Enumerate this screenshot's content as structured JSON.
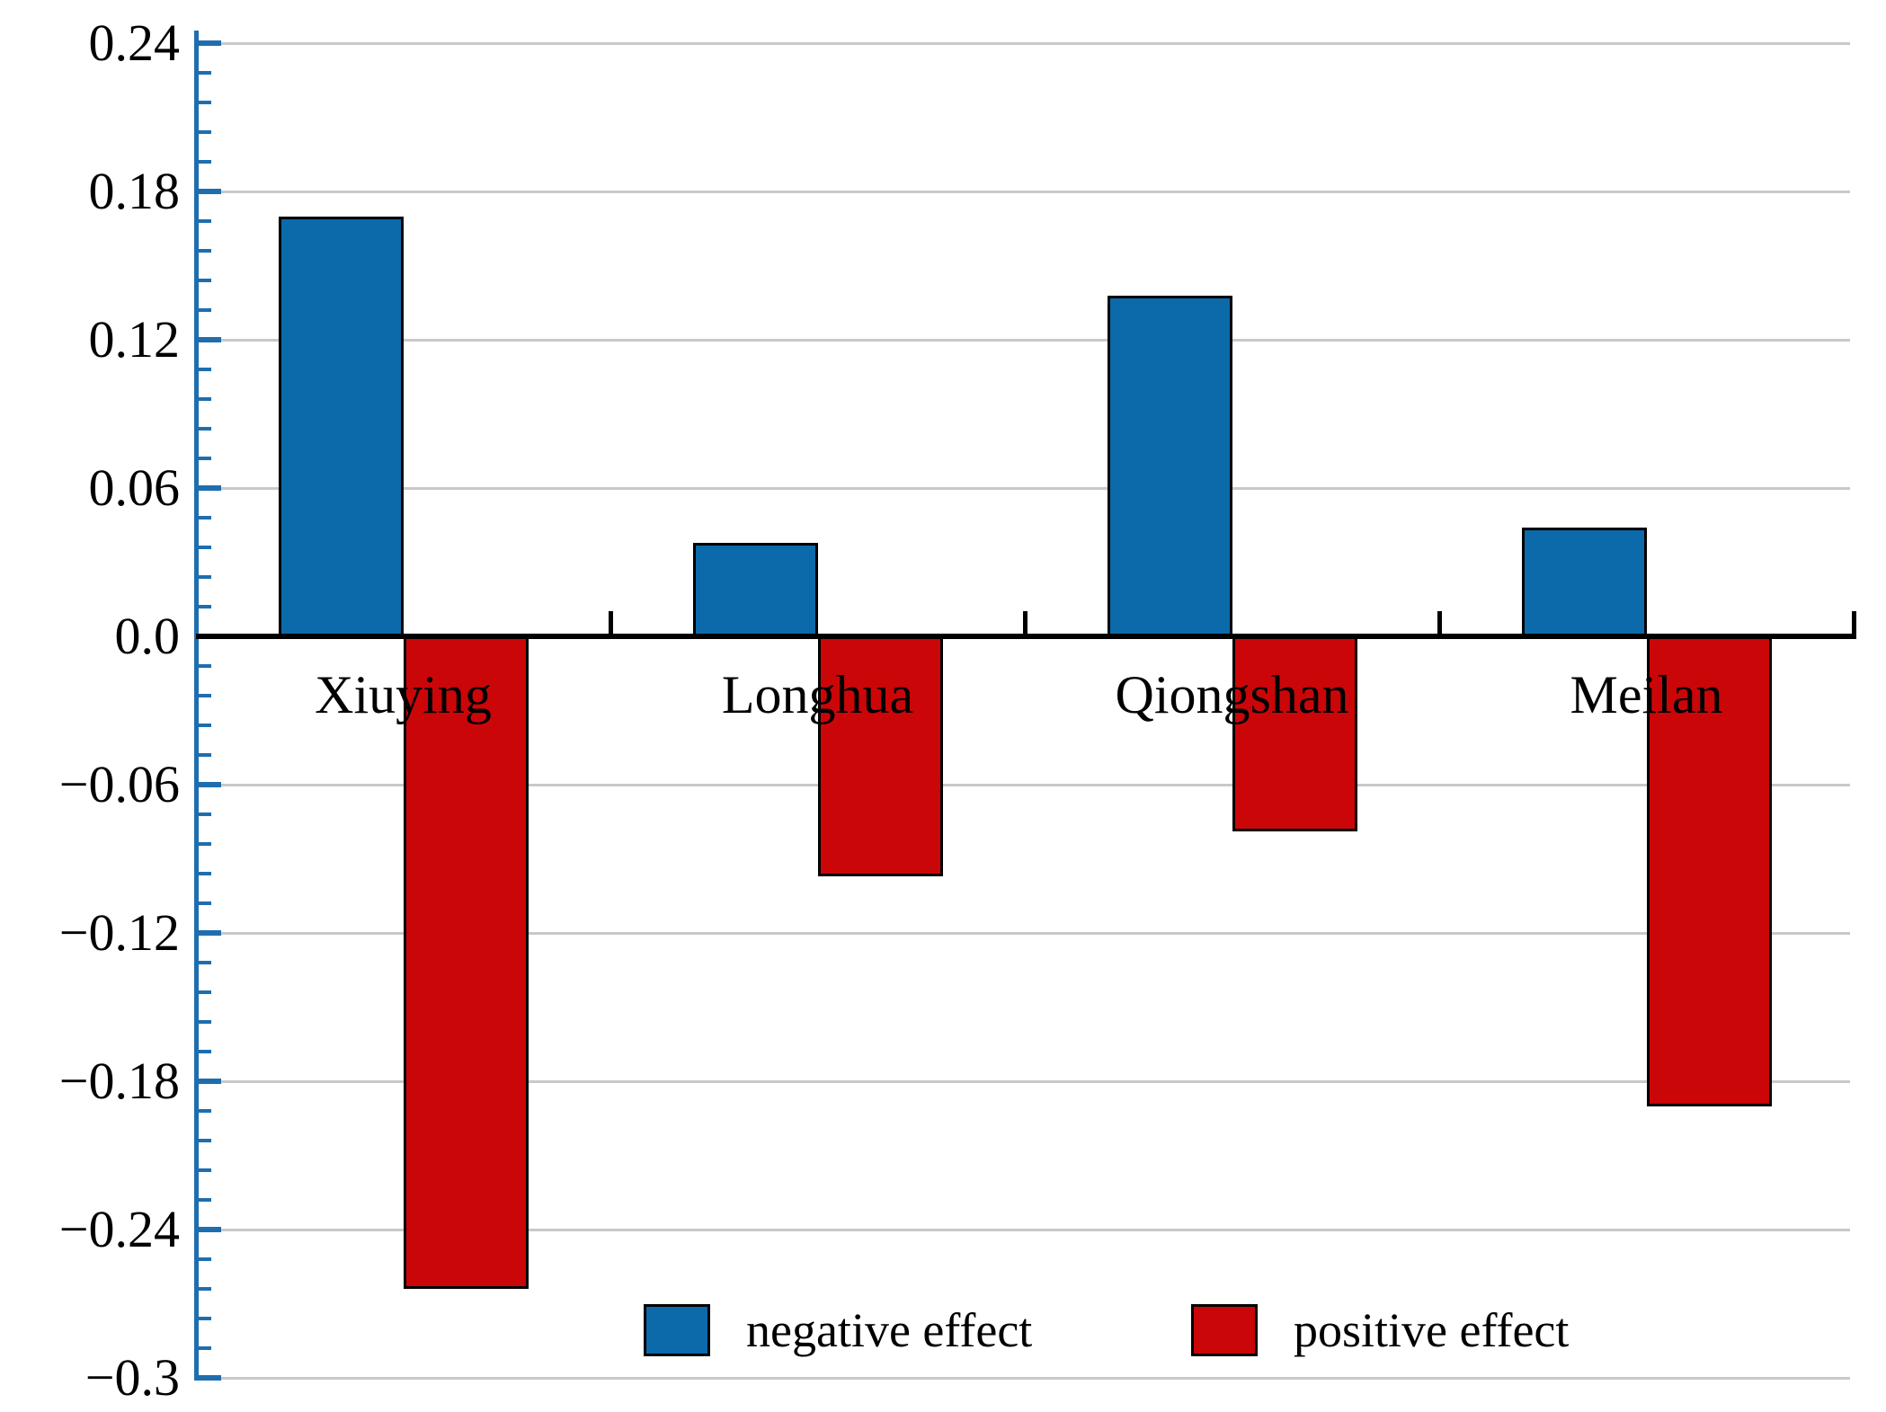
{
  "chart_data": {
    "type": "bar",
    "title": "",
    "xlabel": "",
    "ylabel": "",
    "categories": [
      "Xiuying",
      "Longhua",
      "Qiongshan",
      "Meilan"
    ],
    "series": [
      {
        "name": "negative effect",
        "color": "#0c69aa",
        "values": [
          0.17,
          0.038,
          0.138,
          0.044
        ]
      },
      {
        "name": "positive effect",
        "color": "#cb0608",
        "values": [
          -0.264,
          -0.097,
          -0.079,
          -0.19
        ]
      }
    ],
    "ylim": [
      -0.3,
      0.24
    ],
    "y_major_step": 0.06,
    "y_minor_per_major": 4,
    "y_tick_labels": [
      "0.24",
      "0.18",
      "0.12",
      "0.06",
      "0.0",
      "−0.06",
      "−0.12",
      "−0.18",
      "−0.24",
      "−0.3"
    ],
    "grid": true,
    "legend_position": "bottom-inside",
    "axis_color": "#1e6eaf",
    "gridline_color": "#c9c9c9",
    "zero_line_color": "#000000"
  }
}
